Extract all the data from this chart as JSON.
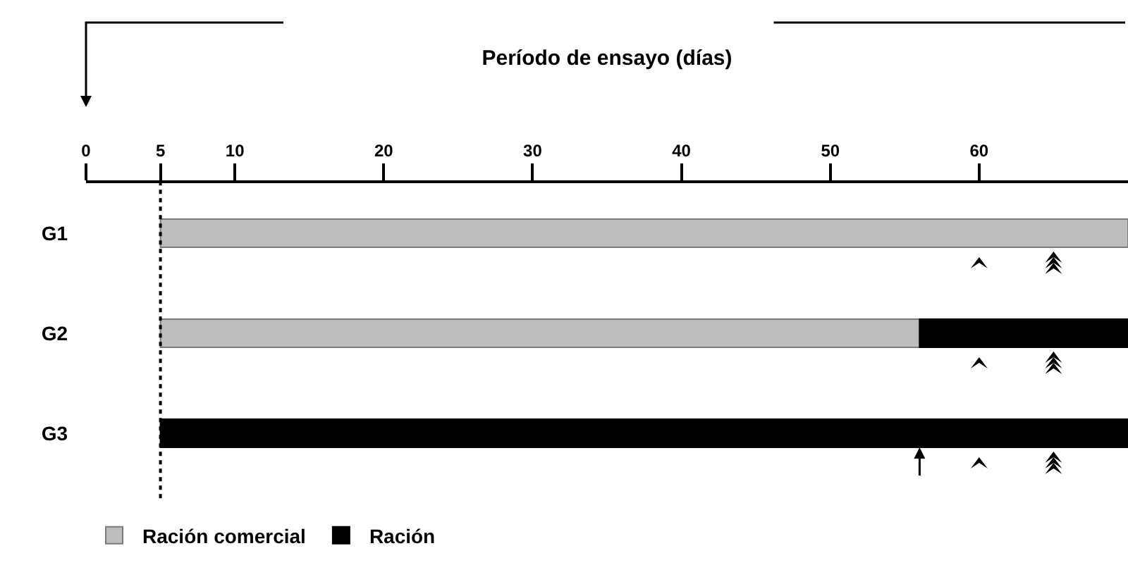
{
  "chart_data": {
    "type": "bar",
    "orientation": "horizontal",
    "xlabel": "Período de ensayo (días)",
    "categories": [
      "G1",
      "G2",
      "G3"
    ],
    "series": [
      {
        "name": "Ración comercial",
        "color": "#bdbdbd",
        "values": [
          65,
          51,
          null
        ],
        "base": [
          5,
          5,
          null
        ]
      },
      {
        "name": "Ración",
        "color": "#000000",
        "values": [
          null,
          14,
          65
        ],
        "base": [
          null,
          56,
          5
        ]
      }
    ],
    "xlim": [
      0,
      70
    ],
    "xticks": [
      0,
      5,
      10,
      20,
      30,
      40,
      50,
      60
    ],
    "grid": false,
    "legend": "bottom",
    "ref_lines": [
      {
        "axis": "x",
        "value": 5,
        "line_style": "dotted",
        "color": "#000000"
      }
    ]
  }
}
